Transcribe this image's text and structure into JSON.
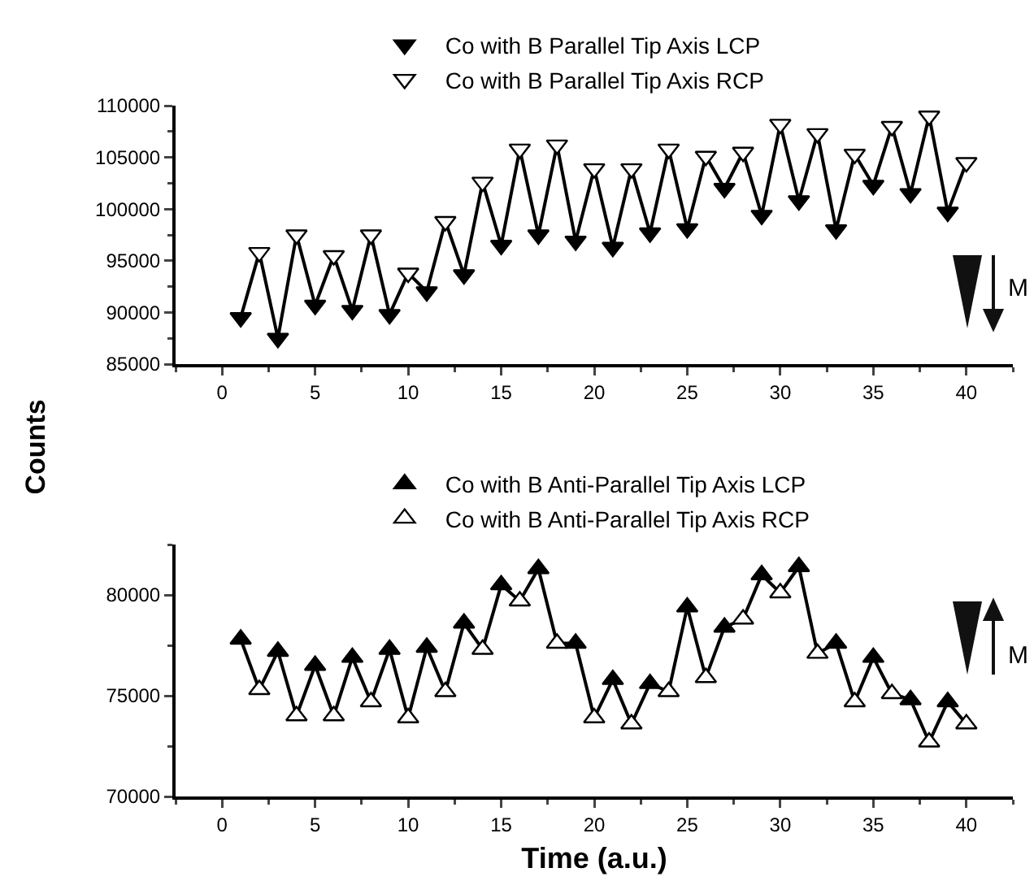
{
  "chart_data": [
    {
      "type": "line",
      "legend": "top",
      "ylabel": "Counts",
      "xlim": [
        -2.5,
        42.5
      ],
      "xticks": [
        0,
        5,
        10,
        15,
        20,
        25,
        30,
        35,
        40
      ],
      "ylim": [
        85000,
        110000
      ],
      "yticks": [
        85000,
        90000,
        95000,
        100000,
        105000,
        110000
      ],
      "annotations": [
        "M"
      ],
      "series": [
        {
          "type": "line",
          "color": "#000000",
          "marker": "none",
          "x": [
            1,
            2,
            3,
            4,
            5,
            6,
            7,
            8,
            9,
            10,
            11,
            12,
            13,
            14,
            15,
            16,
            17,
            18,
            19,
            20,
            21,
            22,
            23,
            24,
            25,
            26,
            27,
            28,
            29,
            30,
            31,
            32,
            33,
            34,
            35,
            36,
            37,
            38,
            39,
            40
          ],
          "values": [
            89500,
            95800,
            87500,
            97500,
            90700,
            95500,
            90200,
            97500,
            89800,
            93800,
            92000,
            98800,
            93650,
            102600,
            96500,
            105800,
            97500,
            106200,
            96900,
            103900,
            96300,
            103900,
            97700,
            105800,
            98100,
            105100,
            102000,
            105500,
            99400,
            108200,
            100800,
            107300,
            98000,
            105300,
            102300,
            108000,
            101500,
            109000,
            99700,
            104500
          ]
        },
        {
          "type": "scatter",
          "name": "Co with B Parallel Tip Axis LCP",
          "color": "#000000",
          "marker": "triangle-down",
          "x": [
            1,
            3,
            5,
            7,
            9,
            11,
            13,
            15,
            17,
            19,
            21,
            23,
            25,
            27,
            29,
            31,
            33,
            35,
            37,
            39
          ],
          "values": [
            89500,
            87500,
            90700,
            90200,
            89800,
            92000,
            93650,
            96500,
            97500,
            96900,
            96300,
            97700,
            98100,
            102000,
            99400,
            100800,
            98000,
            102300,
            101500,
            99700
          ]
        },
        {
          "type": "scatter",
          "name": "Co with B Parallel Tip Axis RCP",
          "color": "#ffffff",
          "marker": "triangle-down",
          "x": [
            2,
            4,
            6,
            8,
            10,
            12,
            14,
            16,
            18,
            20,
            22,
            24,
            26,
            28,
            30,
            32,
            34,
            36,
            38,
            40
          ],
          "values": [
            95800,
            97500,
            95500,
            97500,
            93800,
            98800,
            102600,
            105800,
            106200,
            103900,
            103900,
            105800,
            105100,
            105500,
            108200,
            107300,
            105300,
            108000,
            109000,
            104500
          ]
        }
      ]
    },
    {
      "type": "line",
      "legend": "top",
      "xlabel": "Time (a.u.)",
      "xlim": [
        -2.5,
        42.5
      ],
      "xticks": [
        0,
        5,
        10,
        15,
        20,
        25,
        30,
        35,
        40
      ],
      "ylim": [
        70000,
        82500
      ],
      "yticks": [
        70000,
        75000,
        80000
      ],
      "annotations": [
        "M"
      ],
      "series": [
        {
          "type": "line",
          "color": "#000000",
          "marker": "none",
          "x": [
            1,
            2,
            3,
            4,
            5,
            6,
            7,
            8,
            9,
            10,
            11,
            12,
            13,
            14,
            15,
            16,
            17,
            18,
            19,
            20,
            21,
            22,
            23,
            24,
            25,
            26,
            27,
            28,
            29,
            30,
            31,
            32,
            33,
            34,
            35,
            36,
            37,
            38,
            39,
            40
          ],
          "values": [
            77800,
            75300,
            77200,
            74000,
            76500,
            74000,
            76900,
            74700,
            77300,
            73900,
            77400,
            75200,
            78600,
            77300,
            80500,
            79700,
            81300,
            77600,
            77600,
            73900,
            75800,
            73600,
            75600,
            75200,
            79400,
            75900,
            78400,
            78800,
            81000,
            80100,
            81400,
            77100,
            77600,
            74700,
            76900,
            75100,
            74800,
            72700,
            74700,
            73600
          ]
        },
        {
          "type": "scatter",
          "name": "Co with B Anti-Parallel Tip Axis LCP",
          "color": "#000000",
          "marker": "triangle",
          "x": [
            1,
            3,
            5,
            7,
            9,
            11,
            13,
            15,
            17,
            19,
            21,
            23,
            25,
            27,
            29,
            31,
            33,
            35,
            37,
            39
          ],
          "values": [
            77800,
            77200,
            76500,
            76900,
            77300,
            77400,
            78600,
            80500,
            81300,
            77600,
            75800,
            75600,
            79400,
            78400,
            81000,
            81400,
            77600,
            76900,
            74800,
            74700
          ]
        },
        {
          "type": "scatter",
          "name": "Co with B Anti-Parallel Tip Axis RCP",
          "color": "#ffffff",
          "marker": "triangle",
          "x": [
            2,
            4,
            6,
            8,
            10,
            12,
            14,
            16,
            18,
            20,
            22,
            24,
            26,
            28,
            30,
            32,
            34,
            36,
            38,
            40
          ],
          "values": [
            75300,
            74000,
            74000,
            74700,
            73900,
            75200,
            77300,
            79700,
            77600,
            73900,
            73600,
            75200,
            75900,
            78800,
            80100,
            77100,
            74700,
            75100,
            72700,
            73600
          ]
        }
      ]
    }
  ]
}
